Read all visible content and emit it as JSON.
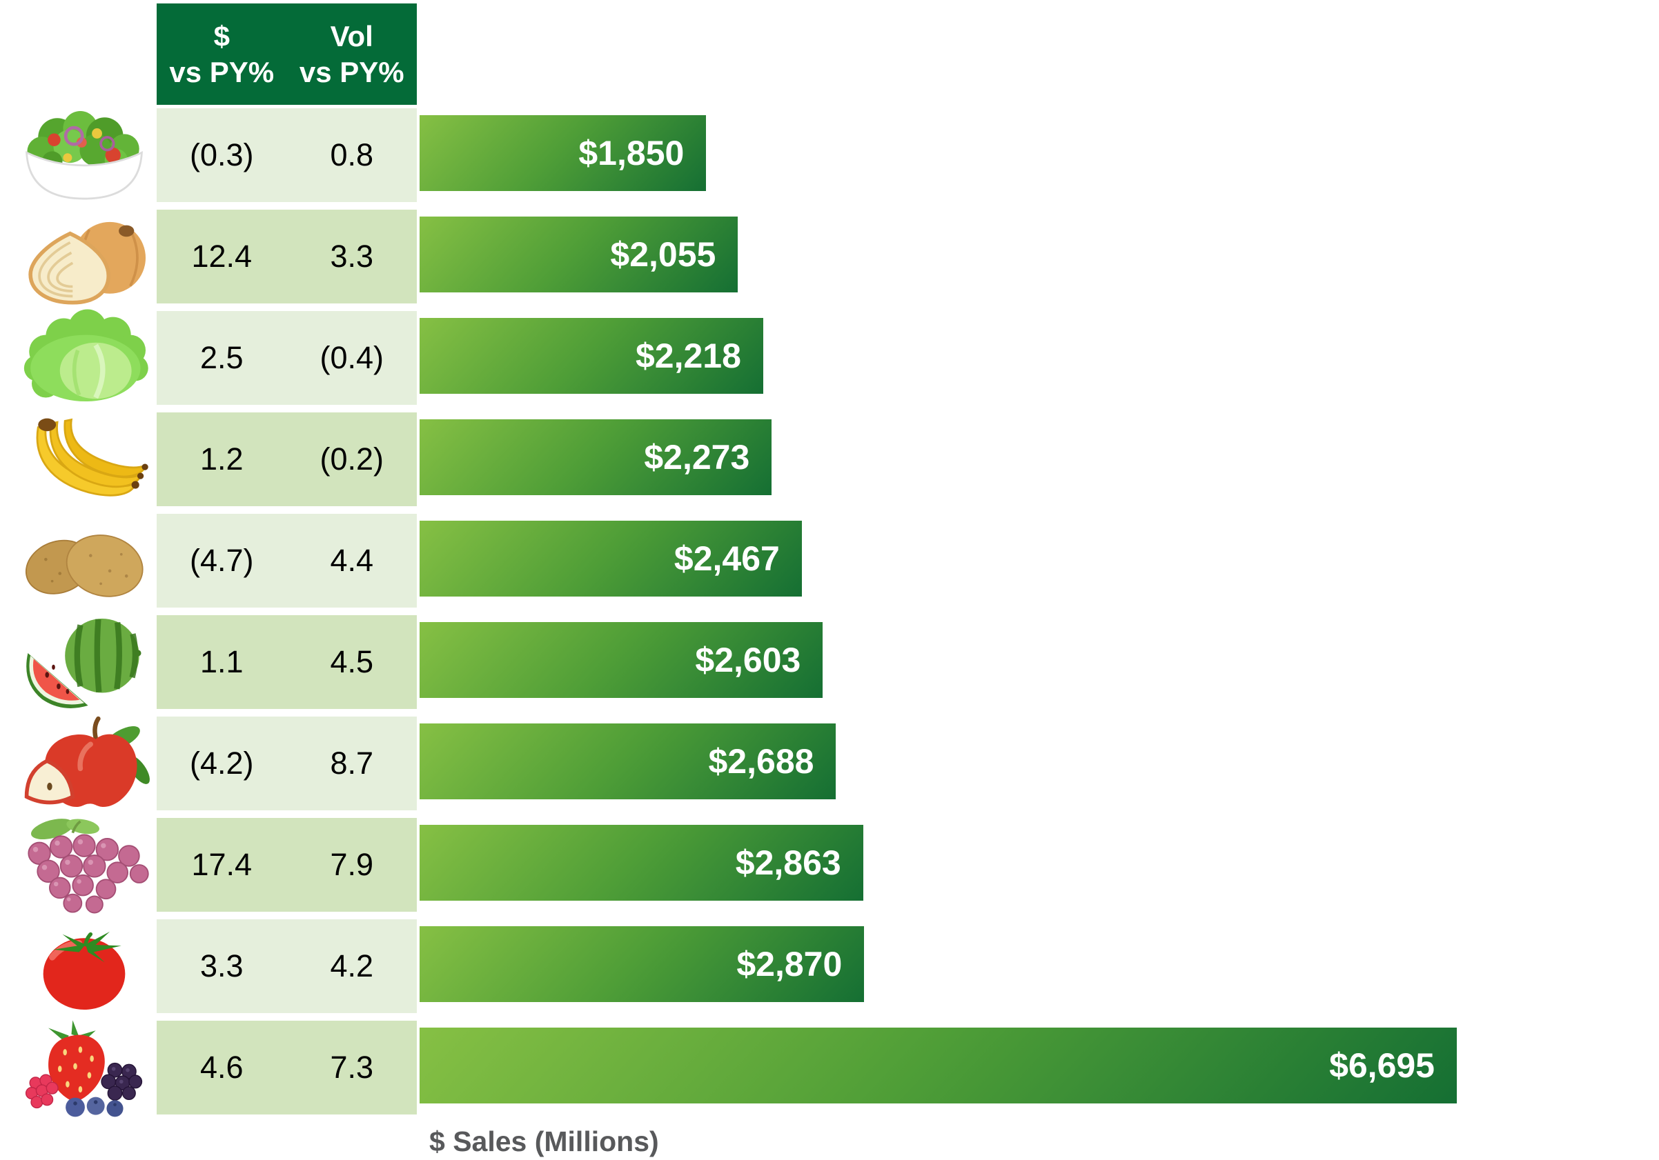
{
  "header": {
    "col1": {
      "line1": "$",
      "line2": "vs PY%"
    },
    "col2": {
      "line1": "Vol",
      "line2": "vs PY%"
    }
  },
  "axis_label": "$ Sales (Millions)",
  "rows": [
    {
      "item": "salad",
      "icon": "salad-bowl-icon",
      "dollar_vs_py": "(0.3)",
      "vol_vs_py": "0.8",
      "sales_label": "$1,850",
      "sales_value": 1850
    },
    {
      "item": "onions",
      "icon": "onion-icon",
      "dollar_vs_py": "12.4",
      "vol_vs_py": "3.3",
      "sales_label": "$2,055",
      "sales_value": 2055
    },
    {
      "item": "lettuce",
      "icon": "lettuce-icon",
      "dollar_vs_py": "2.5",
      "vol_vs_py": "(0.4)",
      "sales_label": "$2,218",
      "sales_value": 2218
    },
    {
      "item": "bananas",
      "icon": "bananas-icon",
      "dollar_vs_py": "1.2",
      "vol_vs_py": "(0.2)",
      "sales_label": "$2,273",
      "sales_value": 2273
    },
    {
      "item": "potatoes",
      "icon": "potatoes-icon",
      "dollar_vs_py": "(4.7)",
      "vol_vs_py": "4.4",
      "sales_label": "$2,467",
      "sales_value": 2467
    },
    {
      "item": "watermelon",
      "icon": "watermelon-icon",
      "dollar_vs_py": "1.1",
      "vol_vs_py": "4.5",
      "sales_label": "$2,603",
      "sales_value": 2603
    },
    {
      "item": "apples",
      "icon": "apple-icon",
      "dollar_vs_py": "(4.2)",
      "vol_vs_py": "8.7",
      "sales_label": "$2,688",
      "sales_value": 2688
    },
    {
      "item": "grapes",
      "icon": "grapes-icon",
      "dollar_vs_py": "17.4",
      "vol_vs_py": "7.9",
      "sales_label": "$2,863",
      "sales_value": 2863
    },
    {
      "item": "tomatoes",
      "icon": "tomato-icon",
      "dollar_vs_py": "3.3",
      "vol_vs_py": "4.2",
      "sales_label": "$2,870",
      "sales_value": 2870
    },
    {
      "item": "berries",
      "icon": "berries-icon",
      "dollar_vs_py": "4.6",
      "vol_vs_py": "7.3",
      "sales_label": "$6,695",
      "sales_value": 6695
    }
  ],
  "chart_data": {
    "type": "bar",
    "orientation": "horizontal",
    "categories": [
      "salad",
      "onions",
      "lettuce",
      "bananas",
      "potatoes",
      "watermelon",
      "apples",
      "grapes",
      "tomatoes",
      "berries"
    ],
    "series": [
      {
        "name": "$ Sales (Millions)",
        "values": [
          1850,
          2055,
          2218,
          2273,
          2467,
          2603,
          2688,
          2863,
          2870,
          6695
        ]
      },
      {
        "name": "$ vs PY%",
        "values": [
          -0.3,
          12.4,
          2.5,
          1.2,
          -4.7,
          1.1,
          -4.2,
          17.4,
          3.3,
          4.6
        ]
      },
      {
        "name": "Vol vs PY%",
        "values": [
          0.8,
          3.3,
          -0.4,
          -0.2,
          4.4,
          4.5,
          8.7,
          7.9,
          4.2,
          7.3
        ]
      }
    ],
    "xlabel": "$ Sales (Millions)",
    "xlim": [
      0,
      6695
    ],
    "grid": false,
    "legend": false,
    "bar_value_labels": [
      "$1,850",
      "$2,055",
      "$2,218",
      "$2,273",
      "$2,467",
      "$2,603",
      "$2,688",
      "$2,863",
      "$2,870",
      "$6,695"
    ],
    "negative_format": "parentheses"
  },
  "colors": {
    "header_bg": "#046B38",
    "header_text": "#FFFFFF",
    "row_light": "#E5EFDC",
    "row_dark": "#D2E4BD",
    "bar_gradient_start": "#86C044",
    "bar_gradient_end": "#156F33",
    "bar_label_text": "#FFFFFF",
    "value_text": "#000000",
    "axis_label_text": "#58595B"
  }
}
